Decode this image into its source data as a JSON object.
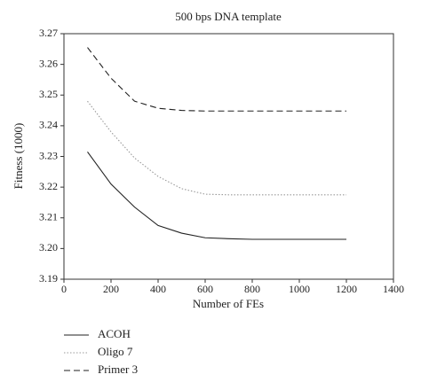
{
  "chart_data": {
    "type": "line",
    "title": "500 bps DNA template",
    "x_label": "Number of FEs",
    "y_label": "Fitness (1000)",
    "x": [
      100,
      200,
      300,
      400,
      500,
      600,
      700,
      800,
      900,
      1000,
      1100,
      1200
    ],
    "series": [
      {
        "name": "ACOH",
        "color": "#222222",
        "line_style": "solid",
        "values": [
          3.2315,
          3.221,
          3.2135,
          3.2075,
          3.205,
          3.2035,
          3.2032,
          3.203,
          3.203,
          3.203,
          3.203,
          3.203
        ]
      },
      {
        "name": "Oligo 7",
        "color": "#999999",
        "line_style": "dotted",
        "values": [
          3.248,
          3.238,
          3.2295,
          3.2235,
          3.2195,
          3.2177,
          3.2175,
          3.2175,
          3.2175,
          3.2175,
          3.2175,
          3.2175
        ]
      },
      {
        "name": "Primer 3",
        "color": "#222222",
        "line_style": "dashed",
        "values": [
          3.2655,
          3.2555,
          3.248,
          3.2457,
          3.245,
          3.2448,
          3.2448,
          3.2448,
          3.2448,
          3.2448,
          3.2448,
          3.2448
        ]
      }
    ],
    "xlim": [
      0,
      1400
    ],
    "xticks": [
      0,
      200,
      400,
      600,
      800,
      1000,
      1200,
      1400
    ],
    "ylim": [
      3.19,
      3.27
    ],
    "yticks": [
      3.19,
      {
        "value": 3.2,
        "label": "3.20"
      },
      3.21,
      3.22,
      3.23,
      3.24,
      3.25,
      3.26,
      3.27
    ],
    "legend": "bottom-left",
    "grid": false
  }
}
